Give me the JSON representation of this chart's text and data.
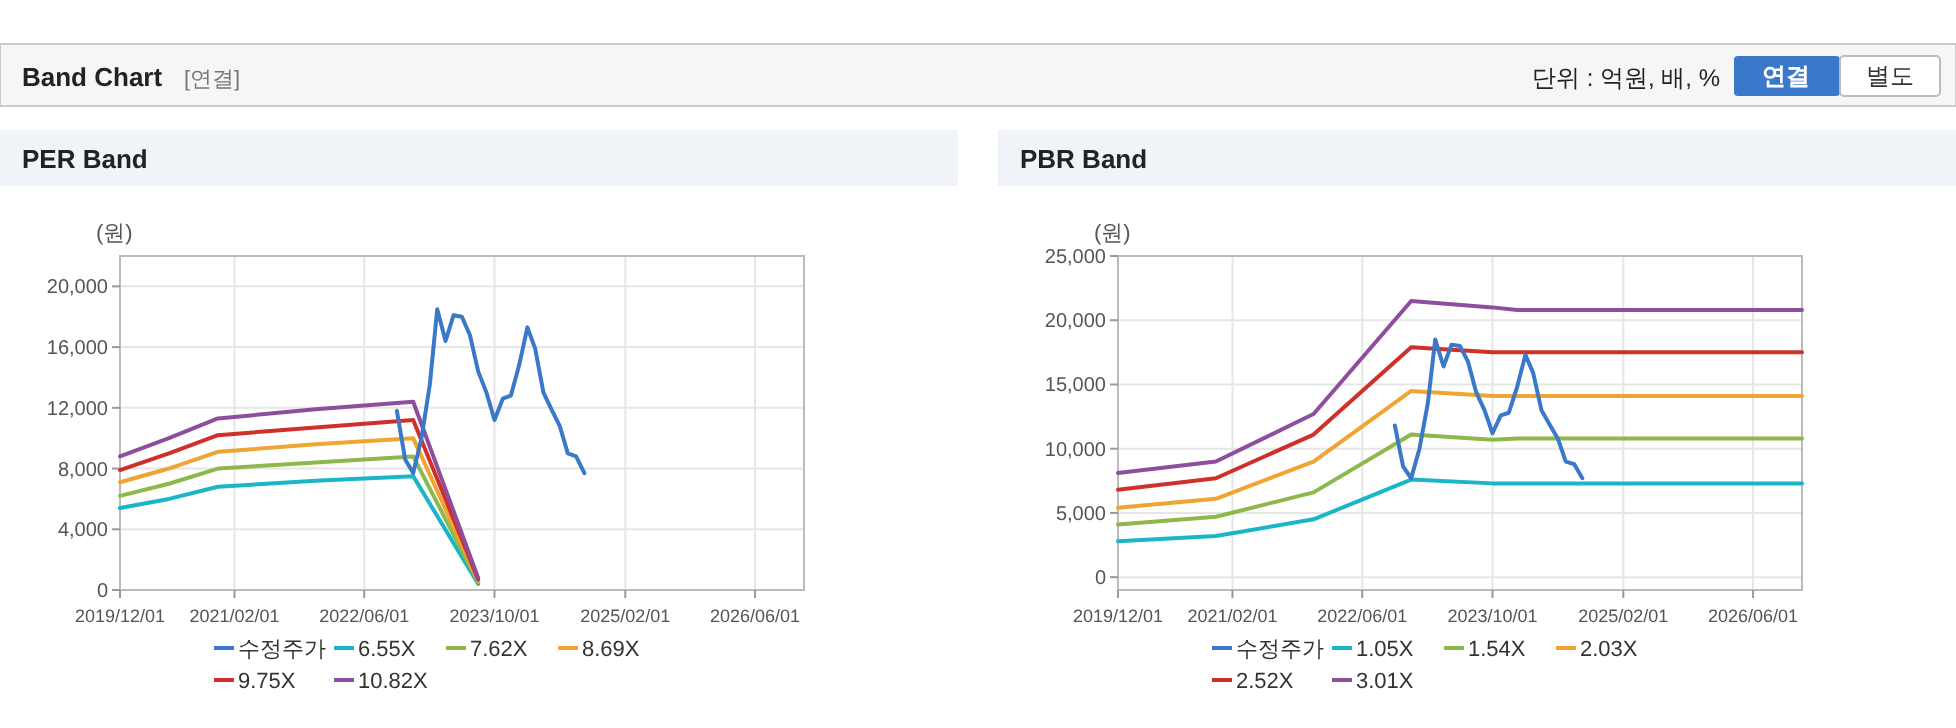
{
  "chart_data": [
    {
      "type": "line",
      "title": "PER Band",
      "ylabel": "(원)",
      "annotations": [
        "Band Chart",
        "[연결]",
        "단위 : 억원, 배, %",
        "연결",
        "별도"
      ],
      "xlim": [
        "2019-12-01",
        "2026-12-01"
      ],
      "xticks": [
        {
          "value": "2019-12-01",
          "label": "2019/12/01"
        },
        {
          "value": "2021-02-01",
          "label": "2021/02/01"
        },
        {
          "value": "2022-06-01",
          "label": "2022/06/01"
        },
        {
          "value": "2023-10-01",
          "label": "2023/10/01"
        },
        {
          "value": "2025-02-01",
          "label": "2025/02/01"
        },
        {
          "value": "2026-06-01",
          "label": "2026/06/01"
        }
      ],
      "ylim": [
        0,
        22000
      ],
      "yticks": [
        {
          "value": 0,
          "label": "0"
        },
        {
          "value": 4000,
          "label": "4,000"
        },
        {
          "value": 8000,
          "label": "8,000"
        },
        {
          "value": 12000,
          "label": "12,000"
        },
        {
          "value": 16000,
          "label": "16,000"
        },
        {
          "value": 20000,
          "label": "20,000"
        }
      ],
      "grid": true,
      "legend": "bottom",
      "marker": "none",
      "line_style": "solid",
      "series": [
        {
          "name": "수정주가",
          "color": "#3a78c9",
          "x": [
            "2022-10",
            "2022-11",
            "2022-12",
            "2023-01",
            "2023-02",
            "2023-03",
            "2023-04",
            "2023-05",
            "2023-06",
            "2023-07",
            "2023-08",
            "2023-09",
            "2023-10",
            "2023-11",
            "2023-12",
            "2024-01",
            "2024-02",
            "2024-03",
            "2024-04",
            "2024-05",
            "2024-06",
            "2024-07",
            "2024-08",
            "2024-09"
          ],
          "values": [
            11800,
            8600,
            7700,
            10000,
            13500,
            18500,
            16400,
            18100,
            18000,
            16800,
            14400,
            13000,
            11200,
            12600,
            12800,
            14800,
            17300,
            15900,
            13000,
            11900,
            10800,
            9000,
            8800,
            7700
          ]
        },
        {
          "name": "6.55X",
          "color": "#1ab5c7",
          "x": [
            "2019-12",
            "2020-06",
            "2020-12",
            "2021-12",
            "2022-12",
            "2023-08"
          ],
          "values": [
            5400,
            6000,
            6800,
            7200,
            7500,
            400
          ]
        },
        {
          "name": "7.62X",
          "color": "#8db84a",
          "x": [
            "2019-12",
            "2020-06",
            "2020-12",
            "2021-12",
            "2022-12",
            "2023-08"
          ],
          "values": [
            6200,
            7000,
            8000,
            8400,
            8800,
            500
          ]
        },
        {
          "name": "8.69X",
          "color": "#f0a431",
          "x": [
            "2019-12",
            "2020-06",
            "2020-12",
            "2021-12",
            "2022-12",
            "2023-08"
          ],
          "values": [
            7100,
            8000,
            9100,
            9600,
            10000,
            600
          ]
        },
        {
          "name": "9.75X",
          "color": "#d0302a",
          "x": [
            "2019-12",
            "2020-06",
            "2020-12",
            "2021-12",
            "2022-12",
            "2023-08"
          ],
          "values": [
            7900,
            9000,
            10200,
            10700,
            11200,
            700
          ]
        },
        {
          "name": "10.82X",
          "color": "#8e4e9e",
          "x": [
            "2019-12",
            "2020-06",
            "2020-12",
            "2021-12",
            "2022-12",
            "2023-08"
          ],
          "values": [
            8800,
            10000,
            11300,
            11900,
            12400,
            800
          ]
        }
      ]
    },
    {
      "type": "line",
      "title": "PBR Band",
      "ylabel": "(원)",
      "xlim": [
        "2019-12-01",
        "2026-12-01"
      ],
      "xticks": [
        {
          "value": "2019-12-01",
          "label": "2019/12/01"
        },
        {
          "value": "2021-02-01",
          "label": "2021/02/01"
        },
        {
          "value": "2022-06-01",
          "label": "2022/06/01"
        },
        {
          "value": "2023-10-01",
          "label": "2023/10/01"
        },
        {
          "value": "2025-02-01",
          "label": "2025/02/01"
        },
        {
          "value": "2026-06-01",
          "label": "2026/06/01"
        }
      ],
      "ylim": [
        -1000,
        25000
      ],
      "yticks": [
        {
          "value": 0,
          "label": "0"
        },
        {
          "value": 5000,
          "label": "5,000"
        },
        {
          "value": 10000,
          "label": "10,000"
        },
        {
          "value": 15000,
          "label": "15,000"
        },
        {
          "value": 20000,
          "label": "20,000"
        },
        {
          "value": 25000,
          "label": "25,000"
        }
      ],
      "grid": true,
      "legend": "bottom",
      "marker": "none",
      "line_style": "solid",
      "series": [
        {
          "name": "수정주가",
          "color": "#3a78c9",
          "x": [
            "2022-10",
            "2022-11",
            "2022-12",
            "2023-01",
            "2023-02",
            "2023-03",
            "2023-04",
            "2023-05",
            "2023-06",
            "2023-07",
            "2023-08",
            "2023-09",
            "2023-10",
            "2023-11",
            "2023-12",
            "2024-01",
            "2024-02",
            "2024-03",
            "2024-04",
            "2024-05",
            "2024-06",
            "2024-07",
            "2024-08",
            "2024-09"
          ],
          "values": [
            11800,
            8600,
            7700,
            10000,
            13500,
            18500,
            16400,
            18100,
            18000,
            16800,
            14400,
            13000,
            11200,
            12600,
            12800,
            14800,
            17300,
            15900,
            13000,
            11900,
            10800,
            9000,
            8800,
            7700
          ]
        },
        {
          "name": "1.05X",
          "color": "#1ab5c7",
          "x": [
            "2019-12",
            "2020-12",
            "2021-12",
            "2022-12",
            "2023-10",
            "2024-01",
            "2026-12"
          ],
          "values": [
            2800,
            3200,
            4500,
            7600,
            7300,
            7300,
            7300
          ]
        },
        {
          "name": "1.54X",
          "color": "#8db84a",
          "x": [
            "2019-12",
            "2020-12",
            "2021-12",
            "2022-12",
            "2023-10",
            "2024-01",
            "2026-12"
          ],
          "values": [
            4100,
            4700,
            6600,
            11100,
            10700,
            10800,
            10800
          ]
        },
        {
          "name": "2.03X",
          "color": "#f0a431",
          "x": [
            "2019-12",
            "2020-12",
            "2021-12",
            "2022-12",
            "2023-10",
            "2024-01",
            "2026-12"
          ],
          "values": [
            5400,
            6100,
            9000,
            14500,
            14100,
            14100,
            14100
          ]
        },
        {
          "name": "2.52X",
          "color": "#d0302a",
          "x": [
            "2019-12",
            "2020-12",
            "2021-12",
            "2022-12",
            "2023-10",
            "2024-01",
            "2026-12"
          ],
          "values": [
            6800,
            7700,
            11100,
            17900,
            17500,
            17500,
            17500
          ]
        },
        {
          "name": "3.01X",
          "color": "#8e4e9e",
          "x": [
            "2019-12",
            "2020-12",
            "2021-12",
            "2022-12",
            "2023-10",
            "2024-01",
            "2026-12"
          ],
          "values": [
            8100,
            9000,
            12700,
            21500,
            21000,
            20800,
            20800
          ]
        }
      ]
    }
  ]
}
